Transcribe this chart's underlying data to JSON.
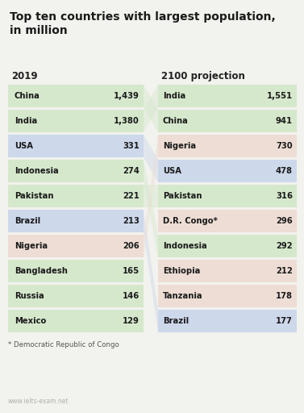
{
  "title": "Top ten countries with largest population,\nin million",
  "left_header": "2019",
  "right_header": "2100 projection",
  "left_data": [
    {
      "country": "China",
      "value": "1,439",
      "color": "#d5e8cc"
    },
    {
      "country": "India",
      "value": "1,380",
      "color": "#d5e8cc"
    },
    {
      "country": "USA",
      "value": "331",
      "color": "#cdd8eb"
    },
    {
      "country": "Indonesia",
      "value": "274",
      "color": "#d5e8cc"
    },
    {
      "country": "Pakistan",
      "value": "221",
      "color": "#d5e8cc"
    },
    {
      "country": "Brazil",
      "value": "213",
      "color": "#cdd8eb"
    },
    {
      "country": "Nigeria",
      "value": "206",
      "color": "#edddd4"
    },
    {
      "country": "Bangladesh",
      "value": "165",
      "color": "#d5e8cc"
    },
    {
      "country": "Russia",
      "value": "146",
      "color": "#d5e8cc"
    },
    {
      "country": "Mexico",
      "value": "129",
      "color": "#d5e8cc"
    }
  ],
  "right_data": [
    {
      "country": "India",
      "value": "1,551",
      "color": "#d5e8cc"
    },
    {
      "country": "China",
      "value": "941",
      "color": "#d5e8cc"
    },
    {
      "country": "Nigeria",
      "value": "730",
      "color": "#edddd4"
    },
    {
      "country": "USA",
      "value": "478",
      "color": "#cdd8eb"
    },
    {
      "country": "Pakistan",
      "value": "316",
      "color": "#d5e8cc"
    },
    {
      "country": "D.R. Congo*",
      "value": "296",
      "color": "#edddd4"
    },
    {
      "country": "Indonesia",
      "value": "292",
      "color": "#d5e8cc"
    },
    {
      "country": "Ethiopia",
      "value": "212",
      "color": "#edddd4"
    },
    {
      "country": "Tanzania",
      "value": "178",
      "color": "#edddd4"
    },
    {
      "country": "Brazil",
      "value": "177",
      "color": "#cdd8eb"
    }
  ],
  "conn_map": {
    "0": 1,
    "1": 0,
    "2": 3,
    "3": 6,
    "4": 4,
    "5": 9,
    "6": 2
  },
  "footnote": "* Democratic Republic of Congo",
  "watermark": "www.ielts-exam.net",
  "bg_color": "#f2f2ee"
}
